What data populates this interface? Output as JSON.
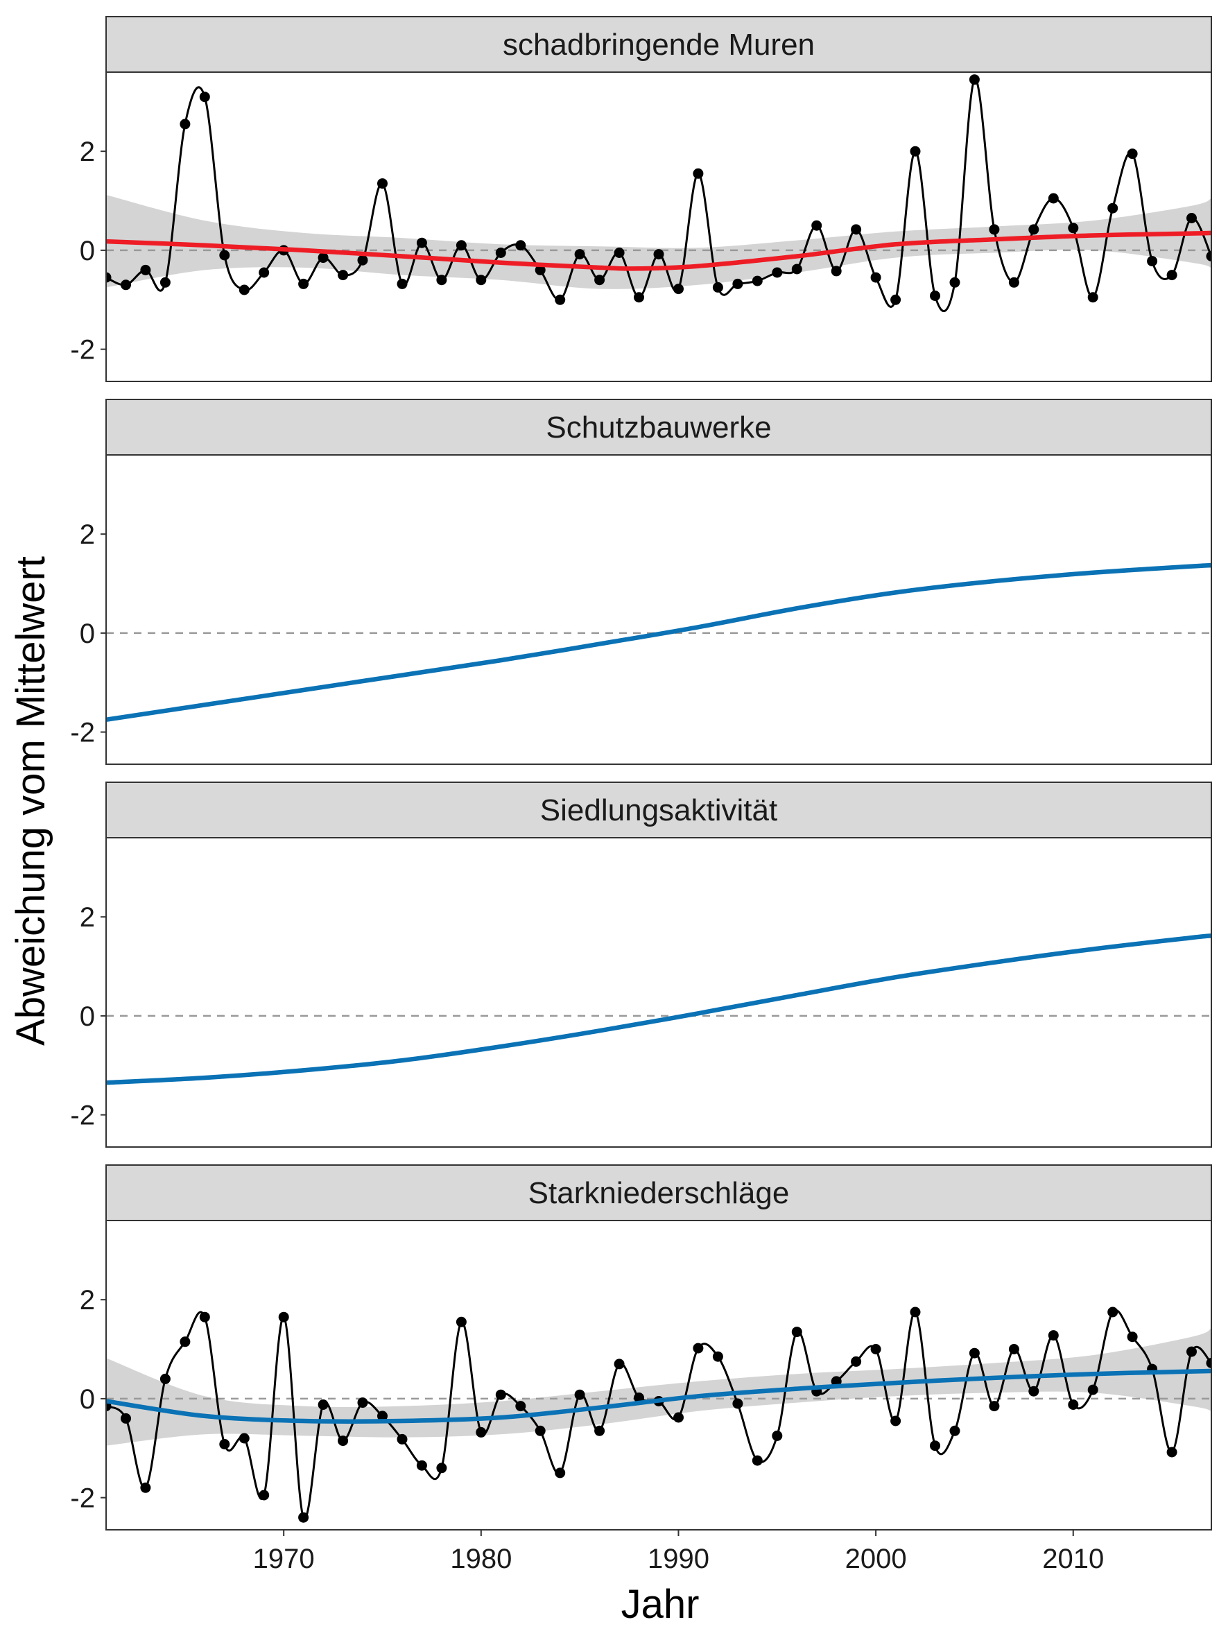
{
  "chart_data": {
    "type": "line",
    "layout": "facets-stacked",
    "xlabel": "Jahr",
    "ylabel": "Abweichung vom Mittelwert",
    "xlim": [
      1961,
      2017
    ],
    "ylim": [
      -2.65,
      3.6
    ],
    "x_ticks": [
      1970,
      1980,
      1990,
      2000,
      2010
    ],
    "y_ticks": [
      -2,
      0,
      2
    ],
    "reference_line": {
      "y": 0,
      "style": "dashed",
      "color": "#999999"
    },
    "grid": false,
    "colors": {
      "strip_background": "#d9d9d9",
      "ribbon": "#cccccc",
      "observed": "#000000",
      "red_trend": "#ee1c25",
      "blue_trend": "#0a72b5"
    },
    "facets": [
      {
        "title": "schadbringende Muren",
        "trend_color": "#ee1c25",
        "observed": {
          "x": [
            1961,
            1962,
            1963,
            1964,
            1965,
            1966,
            1967,
            1968,
            1969,
            1970,
            1971,
            1972,
            1973,
            1974,
            1975,
            1976,
            1977,
            1978,
            1979,
            1980,
            1981,
            1982,
            1983,
            1984,
            1985,
            1986,
            1987,
            1988,
            1989,
            1990,
            1991,
            1992,
            1993,
            1994,
            1995,
            1996,
            1997,
            1998,
            1999,
            2000,
            2001,
            2002,
            2003,
            2004,
            2005,
            2006,
            2007,
            2008,
            2009,
            2010,
            2011,
            2012,
            2013,
            2014,
            2015,
            2016,
            2017
          ],
          "y": [
            -0.55,
            -0.7,
            -0.4,
            -0.65,
            2.55,
            3.1,
            -0.1,
            -0.8,
            -0.45,
            0.0,
            -0.68,
            -0.15,
            -0.5,
            -0.2,
            1.35,
            -0.68,
            0.15,
            -0.6,
            0.1,
            -0.6,
            -0.05,
            0.1,
            -0.4,
            -1.0,
            -0.08,
            -0.6,
            -0.05,
            -0.95,
            -0.08,
            -0.78,
            1.55,
            -0.75,
            -0.68,
            -0.62,
            -0.45,
            -0.38,
            0.5,
            -0.42,
            0.42,
            -0.55,
            -1.0,
            2.0,
            -0.92,
            -0.65,
            3.45,
            0.42,
            -0.65,
            0.42,
            1.05,
            0.45,
            -0.95,
            0.85,
            1.95,
            -0.22,
            -0.5,
            0.65,
            -0.12
          ]
        },
        "trend": {
          "x": [
            1961,
            1966,
            1971,
            1976,
            1981,
            1986,
            1988,
            1991,
            1996,
            2001,
            2006,
            2011,
            2016,
            2017
          ],
          "y": [
            0.18,
            0.1,
            0.0,
            -0.12,
            -0.25,
            -0.35,
            -0.37,
            -0.32,
            -0.12,
            0.12,
            0.22,
            0.3,
            0.34,
            0.35
          ]
        },
        "ribbon": {
          "x": [
            1961,
            1966,
            1971,
            1976,
            1981,
            1986,
            1991,
            1996,
            2001,
            2006,
            2011,
            2016,
            2017
          ],
          "lower": [
            -0.75,
            -0.4,
            -0.35,
            -0.5,
            -0.6,
            -0.78,
            -0.7,
            -0.45,
            -0.15,
            -0.05,
            0.0,
            -0.25,
            -0.35
          ],
          "upper": [
            1.12,
            0.6,
            0.35,
            0.25,
            0.12,
            0.08,
            0.05,
            0.2,
            0.38,
            0.48,
            0.6,
            0.9,
            1.05
          ]
        }
      },
      {
        "title": "Schutzbauwerke",
        "trend_color": "#0a72b5",
        "trend": {
          "x": [
            1961,
            1966,
            1971,
            1976,
            1981,
            1986,
            1991,
            1996,
            2001,
            2006,
            2011,
            2016,
            2017
          ],
          "y": [
            -1.75,
            -1.45,
            -1.15,
            -0.85,
            -0.55,
            -0.22,
            0.12,
            0.5,
            0.82,
            1.05,
            1.22,
            1.35,
            1.37
          ]
        }
      },
      {
        "title": "Siedlungsaktivität",
        "trend_color": "#0a72b5",
        "trend": {
          "x": [
            1961,
            1966,
            1971,
            1976,
            1981,
            1986,
            1991,
            1996,
            2001,
            2006,
            2011,
            2016,
            2017
          ],
          "y": [
            -1.35,
            -1.25,
            -1.1,
            -0.9,
            -0.62,
            -0.3,
            0.05,
            0.42,
            0.78,
            1.08,
            1.35,
            1.58,
            1.62
          ]
        }
      },
      {
        "title": "Starkniederschläge",
        "trend_color": "#0a72b5",
        "observed": {
          "x": [
            1961,
            1962,
            1963,
            1964,
            1965,
            1966,
            1967,
            1968,
            1969,
            1970,
            1971,
            1972,
            1973,
            1974,
            1975,
            1976,
            1977,
            1978,
            1979,
            1980,
            1981,
            1982,
            1983,
            1984,
            1985,
            1986,
            1987,
            1988,
            1989,
            1990,
            1991,
            1992,
            1993,
            1994,
            1995,
            1996,
            1997,
            1998,
            1999,
            2000,
            2001,
            2002,
            2003,
            2004,
            2005,
            2006,
            2007,
            2008,
            2009,
            2010,
            2011,
            2012,
            2013,
            2014,
            2015,
            2016,
            2017
          ],
          "y": [
            -0.15,
            -0.4,
            -1.8,
            0.4,
            1.15,
            1.65,
            -0.92,
            -0.8,
            -1.95,
            1.65,
            -2.4,
            -0.12,
            -0.85,
            -0.08,
            -0.35,
            -0.82,
            -1.35,
            -1.4,
            1.55,
            -0.68,
            0.08,
            -0.15,
            -0.65,
            -1.5,
            0.08,
            -0.65,
            0.7,
            0.02,
            -0.05,
            -0.38,
            1.02,
            0.85,
            -0.1,
            -1.25,
            -0.75,
            1.35,
            0.15,
            0.35,
            0.75,
            1.0,
            -0.45,
            1.75,
            -0.95,
            -0.65,
            0.92,
            -0.15,
            1.0,
            0.15,
            1.28,
            -0.12,
            0.18,
            1.75,
            1.25,
            0.6,
            -1.08,
            0.95,
            0.72
          ]
        },
        "trend": {
          "x": [
            1961,
            1966,
            1971,
            1976,
            1981,
            1986,
            1991,
            1996,
            2001,
            2006,
            2011,
            2016,
            2017
          ],
          "y": [
            -0.05,
            -0.35,
            -0.45,
            -0.45,
            -0.38,
            -0.18,
            0.05,
            0.2,
            0.32,
            0.42,
            0.5,
            0.55,
            0.56
          ]
        },
        "ribbon": {
          "x": [
            1961,
            1966,
            1971,
            1976,
            1981,
            1986,
            1991,
            1996,
            2001,
            2006,
            2011,
            2016,
            2017
          ],
          "lower": [
            -0.95,
            -0.72,
            -0.75,
            -0.78,
            -0.72,
            -0.52,
            -0.25,
            -0.08,
            0.05,
            0.12,
            0.12,
            -0.15,
            -0.25
          ],
          "upper": [
            0.82,
            0.05,
            -0.15,
            -0.15,
            -0.05,
            0.15,
            0.35,
            0.5,
            0.6,
            0.72,
            0.88,
            1.25,
            1.42
          ]
        }
      }
    ]
  }
}
